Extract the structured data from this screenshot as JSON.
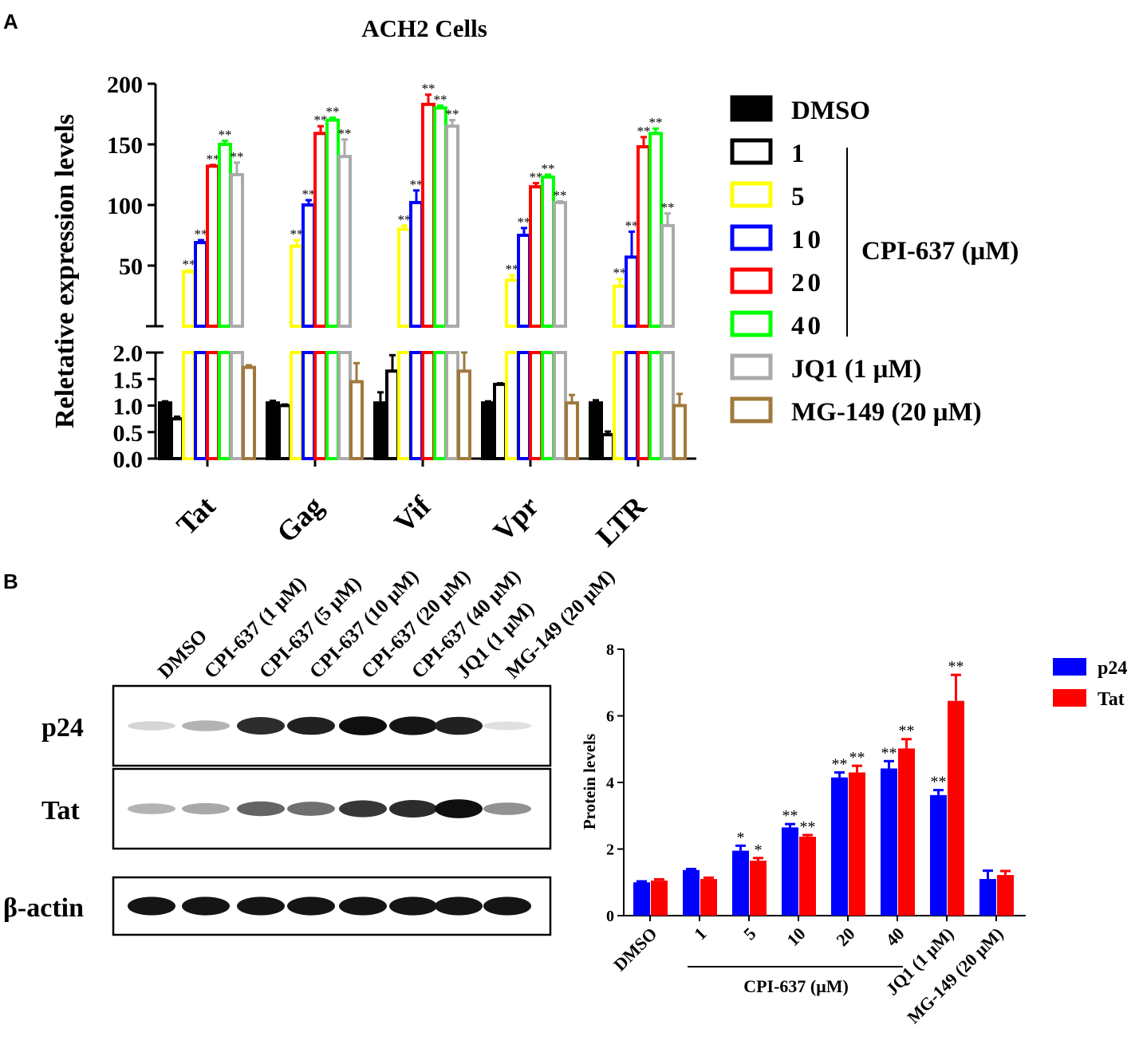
{
  "panels": {
    "a": "A",
    "b": "B"
  },
  "chart_data": [
    {
      "type": "bar",
      "title": "ACH2 Cells",
      "ylabel": "Reletative expression levels",
      "categories": [
        "Tat",
        "Gag",
        "Vif",
        "Vpr",
        "LTR"
      ],
      "axis_break": {
        "lower": [
          0,
          2
        ],
        "upper": [
          0,
          200
        ]
      },
      "lower_ticks": [
        "0.0",
        "0.5",
        "1.0",
        "1.5",
        "2.0"
      ],
      "upper_ticks": [
        "50",
        "100",
        "150",
        "200"
      ],
      "upper_tick_values": [
        50,
        100,
        150,
        200
      ],
      "series": [
        {
          "name": "DMSO",
          "color": "#000000",
          "fill": true,
          "values": [
            1.05,
            1.05,
            1.05,
            1.05,
            1.05
          ],
          "errors": [
            0.03,
            0.04,
            0.2,
            0.03,
            0.05
          ],
          "sig": [
            "",
            "",
            "",
            "",
            ""
          ]
        },
        {
          "name": "1",
          "color": "#000000",
          "fill": false,
          "values": [
            0.75,
            1.0,
            1.65,
            1.4,
            0.45
          ],
          "errors": [
            0.04,
            0.02,
            0.3,
            0.02,
            0.06
          ],
          "sig": [
            "",
            "",
            "",
            "",
            ""
          ]
        },
        {
          "name": "5",
          "color": "#ffff00",
          "fill": false,
          "values": [
            45,
            66,
            80,
            38,
            33
          ],
          "errors": [
            1,
            5,
            3,
            4,
            6
          ],
          "sig": [
            "**",
            "**",
            "**",
            "**",
            "**"
          ]
        },
        {
          "name": "10",
          "color": "#0000ff",
          "fill": false,
          "values": [
            69,
            100,
            102,
            75,
            57
          ],
          "errors": [
            2,
            4,
            10,
            6,
            21
          ],
          "sig": [
            "**",
            "**",
            "**",
            "**",
            "**"
          ]
        },
        {
          "name": "20",
          "color": "#ff0000",
          "fill": false,
          "values": [
            132,
            159,
            183,
            115,
            148
          ],
          "errors": [
            1,
            6,
            8,
            3,
            8
          ],
          "sig": [
            "**",
            "**",
            "**",
            "**",
            "**"
          ]
        },
        {
          "name": "40",
          "color": "#00ff00",
          "fill": false,
          "values": [
            150,
            170,
            180,
            123,
            159
          ],
          "errors": [
            3,
            2,
            2,
            2,
            4
          ],
          "sig": [
            "**",
            "**",
            "**",
            "**",
            "**"
          ]
        },
        {
          "name": "JQ1 (1 μM)",
          "color": "#aaaaaa",
          "fill": false,
          "values": [
            125,
            140,
            165,
            102,
            83
          ],
          "errors": [
            10,
            14,
            5,
            1,
            10
          ],
          "sig": [
            "**",
            "**",
            "**",
            "**",
            "**"
          ]
        },
        {
          "name": "MG-149 (20 μM)",
          "color": "#a0793c",
          "fill": false,
          "values": [
            1.72,
            1.45,
            1.65,
            1.05,
            1.0
          ],
          "errors": [
            0.04,
            0.35,
            0.4,
            0.15,
            0.22
          ],
          "sig": [
            "",
            "",
            "",
            "",
            ""
          ]
        }
      ],
      "legend": {
        "position": "right",
        "group_label": "CPI-637 (μM)",
        "items": [
          "DMSO",
          "1",
          "5",
          "10",
          "20",
          "40",
          "JQ1 (1 μM)",
          "MG-149 (20 μM)"
        ]
      }
    },
    {
      "type": "bar",
      "ylabel": "Protein levels",
      "ylim": [
        0,
        8
      ],
      "yticks": [
        "0",
        "2",
        "4",
        "6",
        "8"
      ],
      "ytick_values": [
        0,
        2,
        4,
        6,
        8
      ],
      "categories": [
        "DMSO",
        "1",
        "5",
        "10",
        "20",
        "40",
        "JQ1 (1 μM)",
        "MG-149 (20 μM)"
      ],
      "group_label": "CPI-637 (μM)",
      "series": [
        {
          "name": "p24",
          "color": "#0000ff",
          "values": [
            1.0,
            1.37,
            1.95,
            2.65,
            4.15,
            4.42,
            3.62,
            1.1
          ],
          "errors": [
            0.03,
            0.03,
            0.15,
            0.1,
            0.15,
            0.22,
            0.15,
            0.25
          ],
          "sig": [
            "",
            "",
            "*",
            "**",
            "**",
            "**",
            "**",
            ""
          ]
        },
        {
          "name": "Tat",
          "color": "#ff0000",
          "values": [
            1.05,
            1.1,
            1.65,
            2.37,
            4.3,
            5.02,
            6.45,
            1.22
          ],
          "errors": [
            0.04,
            0.04,
            0.08,
            0.05,
            0.2,
            0.28,
            0.78,
            0.12
          ],
          "sig": [
            "",
            "",
            "*",
            "**",
            "**",
            "**",
            "**",
            ""
          ]
        }
      ],
      "legend": {
        "position": "top-right",
        "items": [
          "p24",
          "Tat"
        ]
      }
    }
  ],
  "blot": {
    "lanes": [
      "DMSO",
      "CPI-637 (1 μM)",
      "CPI-637 (5 μM)",
      "CPI-637 (10 μM)",
      "CPI-637 (20 μM)",
      "CPI-637 (40 μM)",
      "JQ1 (1 μM)",
      "MG-149 (20 μM)"
    ],
    "rows": [
      {
        "label": "p24",
        "intensity": [
          0.1,
          0.25,
          0.85,
          0.9,
          0.98,
          0.95,
          0.9,
          0.05
        ]
      },
      {
        "label": "Tat",
        "intensity": [
          0.25,
          0.3,
          0.6,
          0.55,
          0.8,
          0.85,
          0.98,
          0.4
        ]
      },
      {
        "label": "β-actin",
        "intensity": [
          0.95,
          0.95,
          0.95,
          0.95,
          0.95,
          0.95,
          0.95,
          0.95
        ]
      }
    ]
  }
}
